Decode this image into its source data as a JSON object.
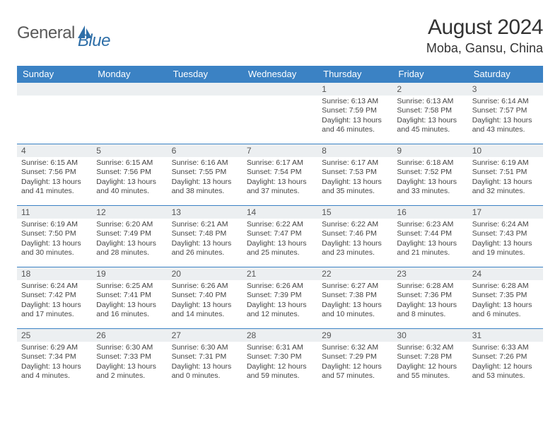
{
  "logo": {
    "text_general": "General",
    "text_blue": "Blue"
  },
  "title": "August 2024",
  "location": "Moba, Gansu, China",
  "colors": {
    "header_bg": "#3b82c4",
    "header_text": "#ffffff",
    "daynum_bg": "#eceff1",
    "border": "#3b82c4",
    "page_bg": "#ffffff",
    "text": "#333333",
    "logo_gray": "#5a5a5a",
    "logo_blue": "#2f6fa8"
  },
  "day_headers": [
    "Sunday",
    "Monday",
    "Tuesday",
    "Wednesday",
    "Thursday",
    "Friday",
    "Saturday"
  ],
  "weeks": [
    [
      {
        "num": "",
        "sunrise": "",
        "sunset": "",
        "daylight": ""
      },
      {
        "num": "",
        "sunrise": "",
        "sunset": "",
        "daylight": ""
      },
      {
        "num": "",
        "sunrise": "",
        "sunset": "",
        "daylight": ""
      },
      {
        "num": "",
        "sunrise": "",
        "sunset": "",
        "daylight": ""
      },
      {
        "num": "1",
        "sunrise": "Sunrise: 6:13 AM",
        "sunset": "Sunset: 7:59 PM",
        "daylight": "Daylight: 13 hours and 46 minutes."
      },
      {
        "num": "2",
        "sunrise": "Sunrise: 6:13 AM",
        "sunset": "Sunset: 7:58 PM",
        "daylight": "Daylight: 13 hours and 45 minutes."
      },
      {
        "num": "3",
        "sunrise": "Sunrise: 6:14 AM",
        "sunset": "Sunset: 7:57 PM",
        "daylight": "Daylight: 13 hours and 43 minutes."
      }
    ],
    [
      {
        "num": "4",
        "sunrise": "Sunrise: 6:15 AM",
        "sunset": "Sunset: 7:56 PM",
        "daylight": "Daylight: 13 hours and 41 minutes."
      },
      {
        "num": "5",
        "sunrise": "Sunrise: 6:15 AM",
        "sunset": "Sunset: 7:56 PM",
        "daylight": "Daylight: 13 hours and 40 minutes."
      },
      {
        "num": "6",
        "sunrise": "Sunrise: 6:16 AM",
        "sunset": "Sunset: 7:55 PM",
        "daylight": "Daylight: 13 hours and 38 minutes."
      },
      {
        "num": "7",
        "sunrise": "Sunrise: 6:17 AM",
        "sunset": "Sunset: 7:54 PM",
        "daylight": "Daylight: 13 hours and 37 minutes."
      },
      {
        "num": "8",
        "sunrise": "Sunrise: 6:17 AM",
        "sunset": "Sunset: 7:53 PM",
        "daylight": "Daylight: 13 hours and 35 minutes."
      },
      {
        "num": "9",
        "sunrise": "Sunrise: 6:18 AM",
        "sunset": "Sunset: 7:52 PM",
        "daylight": "Daylight: 13 hours and 33 minutes."
      },
      {
        "num": "10",
        "sunrise": "Sunrise: 6:19 AM",
        "sunset": "Sunset: 7:51 PM",
        "daylight": "Daylight: 13 hours and 32 minutes."
      }
    ],
    [
      {
        "num": "11",
        "sunrise": "Sunrise: 6:19 AM",
        "sunset": "Sunset: 7:50 PM",
        "daylight": "Daylight: 13 hours and 30 minutes."
      },
      {
        "num": "12",
        "sunrise": "Sunrise: 6:20 AM",
        "sunset": "Sunset: 7:49 PM",
        "daylight": "Daylight: 13 hours and 28 minutes."
      },
      {
        "num": "13",
        "sunrise": "Sunrise: 6:21 AM",
        "sunset": "Sunset: 7:48 PM",
        "daylight": "Daylight: 13 hours and 26 minutes."
      },
      {
        "num": "14",
        "sunrise": "Sunrise: 6:22 AM",
        "sunset": "Sunset: 7:47 PM",
        "daylight": "Daylight: 13 hours and 25 minutes."
      },
      {
        "num": "15",
        "sunrise": "Sunrise: 6:22 AM",
        "sunset": "Sunset: 7:46 PM",
        "daylight": "Daylight: 13 hours and 23 minutes."
      },
      {
        "num": "16",
        "sunrise": "Sunrise: 6:23 AM",
        "sunset": "Sunset: 7:44 PM",
        "daylight": "Daylight: 13 hours and 21 minutes."
      },
      {
        "num": "17",
        "sunrise": "Sunrise: 6:24 AM",
        "sunset": "Sunset: 7:43 PM",
        "daylight": "Daylight: 13 hours and 19 minutes."
      }
    ],
    [
      {
        "num": "18",
        "sunrise": "Sunrise: 6:24 AM",
        "sunset": "Sunset: 7:42 PM",
        "daylight": "Daylight: 13 hours and 17 minutes."
      },
      {
        "num": "19",
        "sunrise": "Sunrise: 6:25 AM",
        "sunset": "Sunset: 7:41 PM",
        "daylight": "Daylight: 13 hours and 16 minutes."
      },
      {
        "num": "20",
        "sunrise": "Sunrise: 6:26 AM",
        "sunset": "Sunset: 7:40 PM",
        "daylight": "Daylight: 13 hours and 14 minutes."
      },
      {
        "num": "21",
        "sunrise": "Sunrise: 6:26 AM",
        "sunset": "Sunset: 7:39 PM",
        "daylight": "Daylight: 13 hours and 12 minutes."
      },
      {
        "num": "22",
        "sunrise": "Sunrise: 6:27 AM",
        "sunset": "Sunset: 7:38 PM",
        "daylight": "Daylight: 13 hours and 10 minutes."
      },
      {
        "num": "23",
        "sunrise": "Sunrise: 6:28 AM",
        "sunset": "Sunset: 7:36 PM",
        "daylight": "Daylight: 13 hours and 8 minutes."
      },
      {
        "num": "24",
        "sunrise": "Sunrise: 6:28 AM",
        "sunset": "Sunset: 7:35 PM",
        "daylight": "Daylight: 13 hours and 6 minutes."
      }
    ],
    [
      {
        "num": "25",
        "sunrise": "Sunrise: 6:29 AM",
        "sunset": "Sunset: 7:34 PM",
        "daylight": "Daylight: 13 hours and 4 minutes."
      },
      {
        "num": "26",
        "sunrise": "Sunrise: 6:30 AM",
        "sunset": "Sunset: 7:33 PM",
        "daylight": "Daylight: 13 hours and 2 minutes."
      },
      {
        "num": "27",
        "sunrise": "Sunrise: 6:30 AM",
        "sunset": "Sunset: 7:31 PM",
        "daylight": "Daylight: 13 hours and 0 minutes."
      },
      {
        "num": "28",
        "sunrise": "Sunrise: 6:31 AM",
        "sunset": "Sunset: 7:30 PM",
        "daylight": "Daylight: 12 hours and 59 minutes."
      },
      {
        "num": "29",
        "sunrise": "Sunrise: 6:32 AM",
        "sunset": "Sunset: 7:29 PM",
        "daylight": "Daylight: 12 hours and 57 minutes."
      },
      {
        "num": "30",
        "sunrise": "Sunrise: 6:32 AM",
        "sunset": "Sunset: 7:28 PM",
        "daylight": "Daylight: 12 hours and 55 minutes."
      },
      {
        "num": "31",
        "sunrise": "Sunrise: 6:33 AM",
        "sunset": "Sunset: 7:26 PM",
        "daylight": "Daylight: 12 hours and 53 minutes."
      }
    ]
  ]
}
